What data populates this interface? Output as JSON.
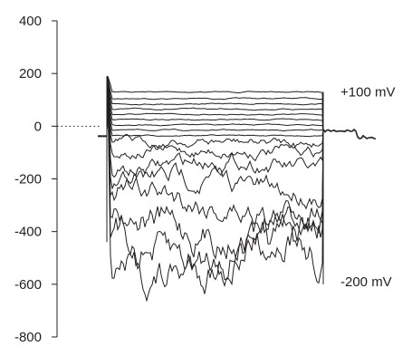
{
  "chart_data": {
    "type": "line",
    "title": "",
    "xlabel": "",
    "ylabel": "",
    "ylim": [
      -800,
      400
    ],
    "yticks": [
      {
        "value": 400,
        "label": "400"
      },
      {
        "value": 200,
        "label": "200"
      },
      {
        "value": 0,
        "label": "0"
      },
      {
        "value": -200,
        "label": "-200"
      },
      {
        "value": -400,
        "label": "-400"
      },
      {
        "value": -600,
        "label": "-600"
      },
      {
        "value": -800,
        "label": "-800"
      }
    ],
    "zero_line": "dotted",
    "step_levels": [
      130,
      105,
      85,
      65,
      45,
      25,
      5,
      -15,
      -35,
      -60,
      -95,
      -150,
      -220,
      -290,
      -370,
      -450,
      -520
    ],
    "annotations": [
      {
        "text": "+100 mV",
        "anchor_value": 130
      },
      {
        "text": "-200 mV",
        "anchor_value": -590
      }
    ],
    "colors": {
      "trace": "#231f20",
      "axis": "#231f20"
    }
  }
}
